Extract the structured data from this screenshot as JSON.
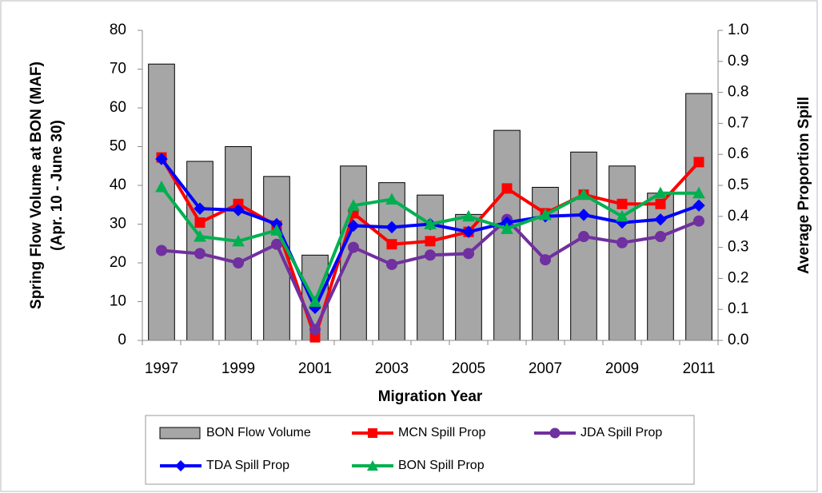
{
  "chart_data": {
    "type": "bar_line",
    "categories": [
      "1997",
      null,
      "1999",
      null,
      "2001",
      null,
      "2003",
      null,
      "2005",
      null,
      "2007",
      null,
      "2009",
      null,
      "2011"
    ],
    "x_label": "Migration Year",
    "y_label": [
      "Spring Flow Volume at BON (MAF)",
      "(Apr. 10 - June 30)"
    ],
    "y2_label": "Average Proportion Spill",
    "ylim": [
      0,
      80
    ],
    "yticks": [
      0,
      10,
      20,
      30,
      40,
      50,
      60,
      70,
      80
    ],
    "y2lim": [
      0,
      1
    ],
    "y2ticks": [
      {
        "value": 0,
        "label": "0.0"
      },
      0.1,
      0.2,
      0.3,
      0.4,
      0.5,
      0.6,
      0.7,
      0.8,
      0.9,
      {
        "value": 1,
        "label": "1.0"
      }
    ],
    "series": [
      {
        "name": "BON Flow Volume",
        "type": "bar",
        "color": "#a6a6a6",
        "values": [
          71.3,
          46.2,
          50,
          42.3,
          22,
          45,
          40.7,
          37.5,
          32.5,
          54.2,
          39.5,
          48.6,
          45,
          38,
          63.7
        ]
      },
      {
        "name": "MCN Spill Prop",
        "type": "line",
        "axis": "y2",
        "marker": "square",
        "color": "#ff0000",
        "values": [
          0.59,
          0.38,
          0.44,
          0.37,
          0.01,
          0.41,
          0.31,
          0.32,
          0.35,
          0.49,
          0.41,
          0.47,
          0.44,
          0.44,
          0.575
        ]
      },
      {
        "name": "JDA Spill Prop",
        "type": "line",
        "axis": "y2",
        "marker": "circle",
        "color": "#7030a0",
        "values": [
          0.29,
          0.28,
          0.25,
          0.31,
          0.035,
          0.3,
          0.245,
          0.275,
          0.28,
          0.39,
          0.26,
          0.335,
          0.315,
          0.335,
          0.385
        ]
      },
      {
        "name": "TDA Spill Prop",
        "type": "line",
        "axis": "y2",
        "marker": "diamond",
        "color": "#0000ff",
        "values": [
          0.585,
          0.425,
          0.42,
          0.375,
          0.105,
          0.37,
          0.365,
          0.375,
          0.35,
          0.38,
          0.4,
          0.405,
          0.38,
          0.39,
          0.435
        ]
      },
      {
        "name": "BON Spill Prop",
        "type": "line",
        "axis": "y2",
        "marker": "triangle",
        "color": "#00b050",
        "values": [
          0.495,
          0.335,
          0.32,
          0.355,
          0.125,
          0.435,
          0.455,
          0.375,
          0.4,
          0.36,
          0.405,
          0.47,
          0.4,
          0.475,
          0.475
        ]
      }
    ]
  }
}
